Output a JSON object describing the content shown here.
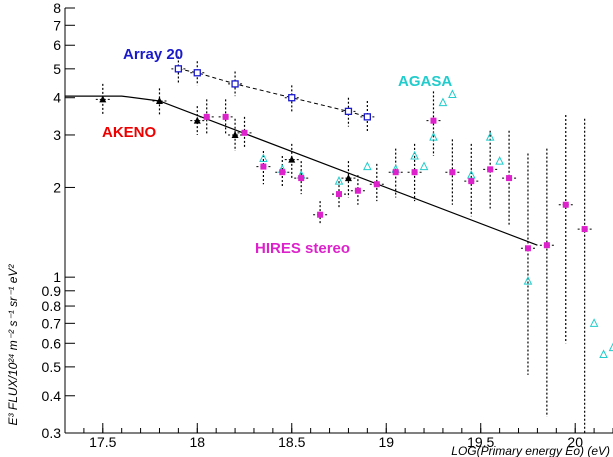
{
  "chart_data": {
    "type": "scatter",
    "xlabel": "LOG(Primary energy Eo) (eV)",
    "ylabel": "E³ FLUX/10²⁴ m⁻² s⁻¹ sr⁻¹ eV²",
    "xlim": [
      17.3,
      20.2
    ],
    "ylim": [
      0.3,
      8
    ],
    "yscale": "log",
    "grid": false,
    "x_ticks": [
      {
        "value": 17.5,
        "label": "17.5"
      },
      {
        "value": 18,
        "label": "18"
      },
      {
        "value": 18.5,
        "label": "18.5"
      },
      {
        "value": 19,
        "label": "19"
      },
      {
        "value": 19.5,
        "label": "19.5"
      },
      {
        "value": 20,
        "label": "20"
      }
    ],
    "y_ticks": [
      {
        "value": 0.3,
        "label": "0.3"
      },
      {
        "value": 0.4,
        "label": "0.4"
      },
      {
        "value": 0.5,
        "label": "0.5"
      },
      {
        "value": 0.6,
        "label": "0.6"
      },
      {
        "value": 0.7,
        "label": "0.7"
      },
      {
        "value": 0.8,
        "label": "0.8"
      },
      {
        "value": 0.9,
        "label": "0.9"
      },
      {
        "value": 1,
        "label": "1"
      },
      {
        "value": 2,
        "label": "2"
      },
      {
        "value": 3,
        "label": "3"
      },
      {
        "value": 4,
        "label": "4"
      },
      {
        "value": 5,
        "label": "5"
      },
      {
        "value": 6,
        "label": "6"
      },
      {
        "value": 7,
        "label": "7"
      },
      {
        "value": 8,
        "label": "8"
      }
    ],
    "series": [
      {
        "name": "Array 20",
        "color": "#1a1acc",
        "marker": "open-square",
        "connect": "dashed",
        "points": [
          {
            "x": 17.9,
            "y": 5.0,
            "lo": 4.5,
            "hi": 5.5
          },
          {
            "x": 18.0,
            "y": 4.85,
            "lo": 4.4,
            "hi": 5.3
          },
          {
            "x": 18.2,
            "y": 4.45,
            "lo": 4.05,
            "hi": 4.9
          },
          {
            "x": 18.5,
            "y": 4.0,
            "lo": 3.6,
            "hi": 4.4
          },
          {
            "x": 18.8,
            "y": 3.6,
            "lo": 3.2,
            "hi": 4.0
          },
          {
            "x": 18.9,
            "y": 3.45,
            "lo": 3.05,
            "hi": 3.9
          }
        ]
      },
      {
        "name": "AKENO",
        "color": "#ee0000",
        "marker": "triangle",
        "fit_line": [
          {
            "x": 17.3,
            "y": 4.05
          },
          {
            "x": 17.6,
            "y": 4.05
          },
          {
            "x": 17.8,
            "y": 3.9
          },
          {
            "x": 19.8,
            "y": 1.28
          }
        ],
        "points": [
          {
            "x": 17.5,
            "y": 3.95,
            "lo": 3.5,
            "hi": 4.45
          },
          {
            "x": 17.8,
            "y": 3.9,
            "lo": 3.5,
            "hi": 4.3
          },
          {
            "x": 18.0,
            "y": 3.35,
            "lo": 3.0,
            "hi": 3.75
          },
          {
            "x": 18.2,
            "y": 3.0,
            "lo": 2.65,
            "hi": 3.4
          },
          {
            "x": 18.5,
            "y": 2.48,
            "lo": 2.15,
            "hi": 2.8
          },
          {
            "x": 18.8,
            "y": 2.15,
            "lo": 1.85,
            "hi": 2.45
          }
        ]
      },
      {
        "name": "AGASA",
        "color": "#22cccc",
        "marker": "open-triangle",
        "points": [
          {
            "x": 18.35,
            "y": 2.5
          },
          {
            "x": 18.45,
            "y": 2.3
          },
          {
            "x": 18.55,
            "y": 2.2
          },
          {
            "x": 18.75,
            "y": 2.1
          },
          {
            "x": 18.9,
            "y": 2.35
          },
          {
            "x": 19.05,
            "y": 2.3
          },
          {
            "x": 19.15,
            "y": 2.55
          },
          {
            "x": 19.2,
            "y": 2.35
          },
          {
            "x": 19.25,
            "y": 2.95
          },
          {
            "x": 19.3,
            "y": 3.85
          },
          {
            "x": 19.35,
            "y": 4.1
          },
          {
            "x": 19.45,
            "y": 2.2
          },
          {
            "x": 19.55,
            "y": 2.95
          },
          {
            "x": 19.6,
            "y": 2.45
          },
          {
            "x": 19.75,
            "y": 0.97
          },
          {
            "x": 20.1,
            "y": 0.7
          },
          {
            "x": 20.15,
            "y": 0.55
          },
          {
            "x": 20.2,
            "y": 0.58
          }
        ]
      },
      {
        "name": "HIRES stereo",
        "color": "#dd22cc",
        "marker": "filled-square",
        "points": [
          {
            "x": 18.05,
            "y": 3.45,
            "lo": 3.0,
            "hi": 3.95
          },
          {
            "x": 18.15,
            "y": 3.45,
            "lo": 3.0,
            "hi": 3.95
          },
          {
            "x": 18.25,
            "y": 3.05,
            "lo": 2.7,
            "hi": 3.45
          },
          {
            "x": 18.35,
            "y": 2.35,
            "lo": 2.05,
            "hi": 2.65
          },
          {
            "x": 18.45,
            "y": 2.25,
            "lo": 2.0,
            "hi": 2.55
          },
          {
            "x": 18.55,
            "y": 2.15,
            "lo": 1.9,
            "hi": 2.45
          },
          {
            "x": 18.65,
            "y": 1.62,
            "lo": 1.5,
            "hi": 1.8
          },
          {
            "x": 18.75,
            "y": 1.9,
            "lo": 1.7,
            "hi": 2.1
          },
          {
            "x": 18.85,
            "y": 1.95,
            "lo": 1.75,
            "hi": 2.2
          },
          {
            "x": 18.95,
            "y": 2.05,
            "lo": 1.8,
            "hi": 2.4
          },
          {
            "x": 19.05,
            "y": 2.25,
            "lo": 1.85,
            "hi": 2.7
          },
          {
            "x": 19.15,
            "y": 2.25,
            "lo": 1.8,
            "hi": 2.8
          },
          {
            "x": 19.25,
            "y": 3.35,
            "lo": 2.55,
            "hi": 4.2
          },
          {
            "x": 19.35,
            "y": 2.25,
            "lo": 1.75,
            "hi": 2.9
          },
          {
            "x": 19.45,
            "y": 2.1,
            "lo": 1.6,
            "hi": 2.8
          },
          {
            "x": 19.55,
            "y": 2.3,
            "lo": 1.7,
            "hi": 3.1
          },
          {
            "x": 19.65,
            "y": 2.15,
            "lo": 1.5,
            "hi": 3.1
          },
          {
            "x": 19.75,
            "y": 1.25,
            "lo": 0.47,
            "hi": 2.6
          },
          {
            "x": 19.85,
            "y": 1.28,
            "lo": 0.34,
            "hi": 2.7
          },
          {
            "x": 19.95,
            "y": 1.75,
            "lo": 0.6,
            "hi": 3.5
          },
          {
            "x": 20.05,
            "y": 1.45,
            "lo": 0.3,
            "hi": 3.4
          }
        ]
      }
    ]
  }
}
